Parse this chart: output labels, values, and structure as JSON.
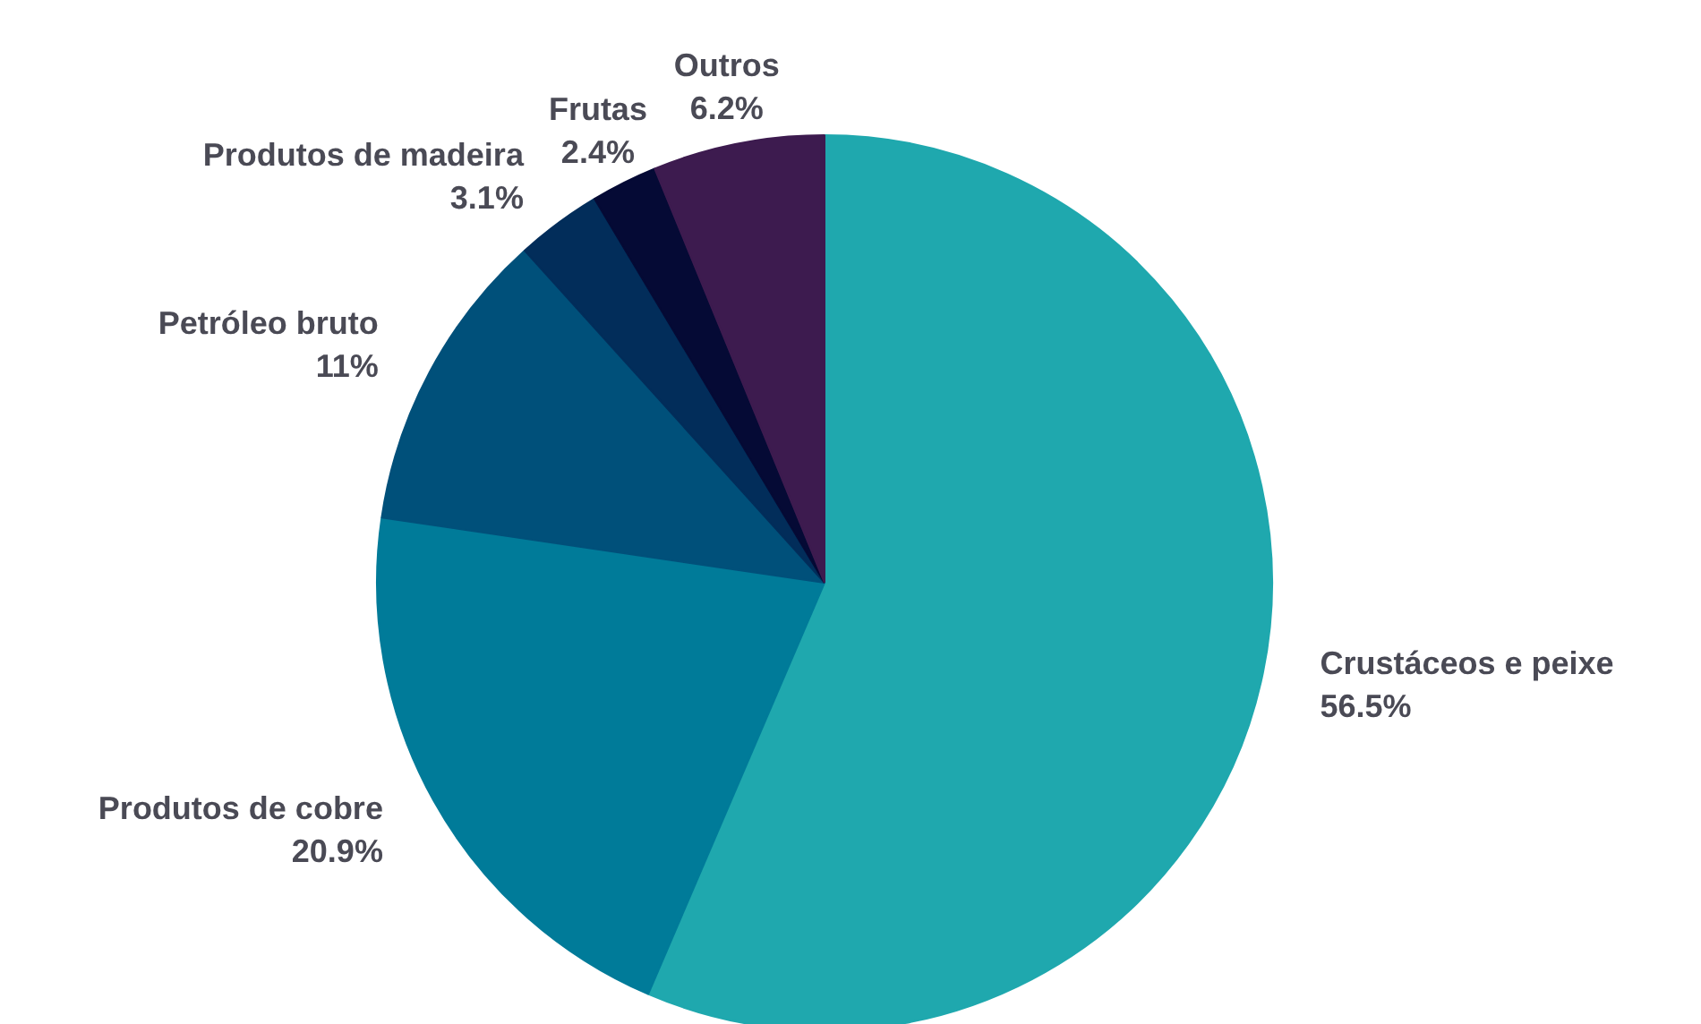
{
  "chart_data": {
    "type": "pie",
    "categories": [
      "Crustáceos e peixe",
      "Produtos de cobre",
      "Petróleo bruto",
      "Produtos de madeira",
      "Frutas",
      "Outros"
    ],
    "values": [
      56.5,
      20.9,
      11,
      3.1,
      2.4,
      6.2
    ],
    "colors": [
      "#1fa8ae",
      "#007b99",
      "#00507a",
      "#022d5a",
      "#050a35",
      "#3d1b4f"
    ],
    "value_labels": [
      "56.5%",
      "20.9%",
      "11%",
      "3.1%",
      "2.4%",
      "6.2%"
    ]
  }
}
